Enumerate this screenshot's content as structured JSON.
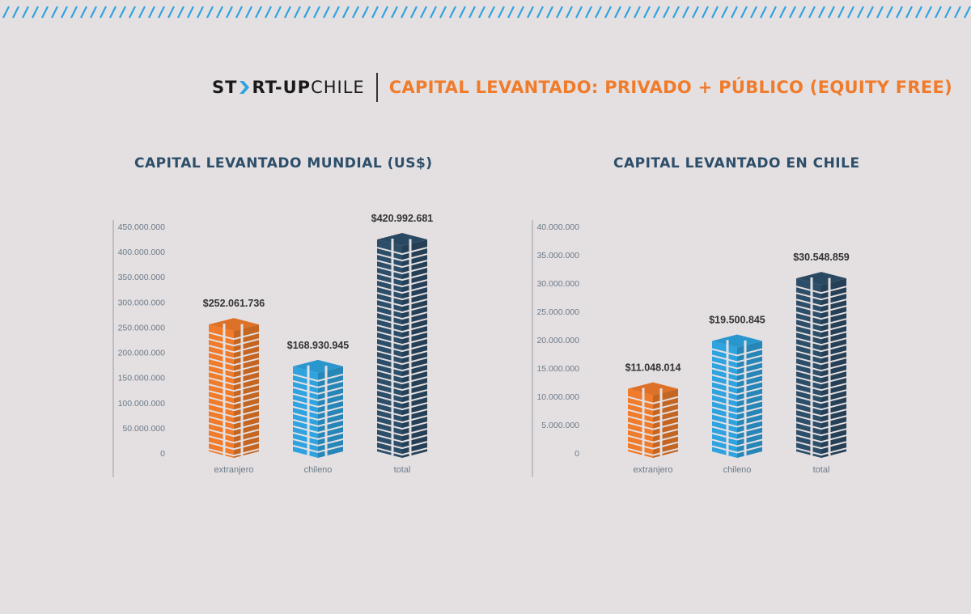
{
  "header": {
    "logo_part1": "ST",
    "logo_part2": "RT-UP",
    "logo_part3": "CHILE",
    "title": "CAPITAL LEVANTADO: PRIVADO + PÚBLICO (EQUITY FREE)"
  },
  "colors": {
    "background": "#e4e0e2",
    "orange": "#f07b2a",
    "blue": "#2ea3e0",
    "navy": "#2d4e69",
    "stripe": "#2ea3e0"
  },
  "chart_data": [
    {
      "type": "bar",
      "title": "CAPITAL LEVANTADO MUNDIAL (US$)",
      "categories": [
        "extranjero",
        "chileno",
        "total"
      ],
      "values": [
        252061736,
        168930945,
        420992681
      ],
      "value_labels": [
        "$252.061.736",
        "$168.930.945",
        "$420.992.681"
      ],
      "bar_colors": [
        "#f07b2a",
        "#2ea3e0",
        "#2d4e69"
      ],
      "ylim": [
        0,
        450000000
      ],
      "yticks": [
        "0",
        "50.000.000",
        "100.000.000",
        "150.000.000",
        "200.000.000",
        "250.000.000",
        "300.000.000",
        "350.000.000",
        "400.000.000",
        "450.000.000"
      ],
      "grid": false
    },
    {
      "type": "bar",
      "title": "CAPITAL LEVANTADO EN CHILE",
      "categories": [
        "extranjero",
        "chileno",
        "total"
      ],
      "values": [
        11048014,
        19500845,
        30548859
      ],
      "value_labels": [
        "$11.048.014",
        "$19.500.845",
        "$30.548.859"
      ],
      "bar_colors": [
        "#f07b2a",
        "#2ea3e0",
        "#2d4e69"
      ],
      "ylim": [
        0,
        40000000
      ],
      "yticks": [
        "0",
        "5.000.000",
        "10.000.000",
        "15.000.000",
        "20.000.000",
        "25.000.000",
        "30.000.000",
        "35.000.000",
        "40.000.000"
      ],
      "grid": false
    }
  ]
}
